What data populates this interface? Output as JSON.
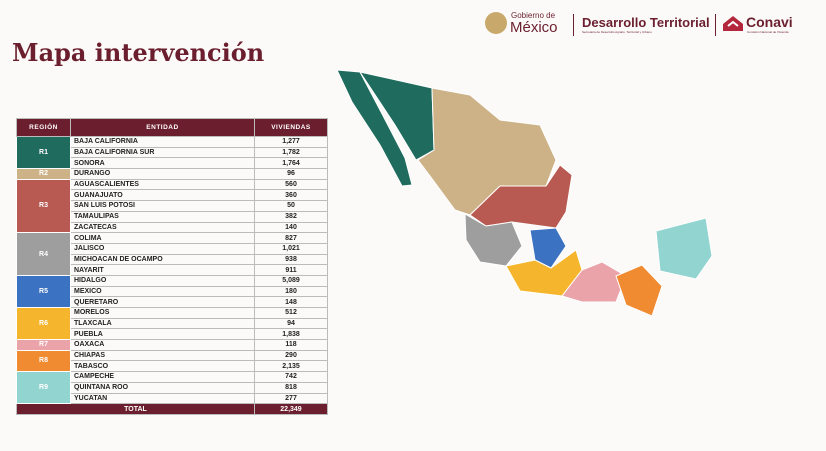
{
  "header": {
    "gov_small": "Gobierno de",
    "gov_big": "México",
    "agency": "Desarrollo Territorial",
    "agency_small": "Secretaría de Desarrollo Agrario, Territorial y Urbano",
    "conavi": "Conavi",
    "conavi_small": "Comisión Nacional de Vivienda"
  },
  "title": "Mapa intervención",
  "table": {
    "columns": [
      "REGIÓN",
      "ENTIDAD",
      "VIVIENDAS"
    ],
    "regions": [
      {
        "region": "R1",
        "color": "#1f6b5e",
        "rows": [
          {
            "entity": "BAJA CALIFORNIA",
            "viviendas": "1,277"
          },
          {
            "entity": "BAJA CALIFORNIA SUR",
            "viviendas": "1,782"
          },
          {
            "entity": "SONORA",
            "viviendas": "1,764"
          }
        ]
      },
      {
        "region": "R2",
        "color": "#cdb287",
        "rows": [
          {
            "entity": "DURANGO",
            "viviendas": "96"
          }
        ]
      },
      {
        "region": "R3",
        "color": "#b85a52",
        "rows": [
          {
            "entity": "AGUASCALIENTES",
            "viviendas": "560"
          },
          {
            "entity": "GUANAJUATO",
            "viviendas": "360"
          },
          {
            "entity": "SAN LUIS POTOSI",
            "viviendas": "50"
          },
          {
            "entity": "TAMAULIPAS",
            "viviendas": "382"
          },
          {
            "entity": "ZACATECAS",
            "viviendas": "140"
          }
        ]
      },
      {
        "region": "R4",
        "color": "#9e9e9e",
        "rows": [
          {
            "entity": "COLIMA",
            "viviendas": "827"
          },
          {
            "entity": "JALISCO",
            "viviendas": "1,021"
          },
          {
            "entity": "MICHOACAN DE OCAMPO",
            "viviendas": "938"
          },
          {
            "entity": "NAYARIT",
            "viviendas": "911"
          }
        ]
      },
      {
        "region": "R5",
        "color": "#3b72c2",
        "rows": [
          {
            "entity": "HIDALGO",
            "viviendas": "5,089"
          },
          {
            "entity": "MEXICO",
            "viviendas": "180"
          },
          {
            "entity": "QUERETARO",
            "viviendas": "148"
          }
        ]
      },
      {
        "region": "R6",
        "color": "#f5b62e",
        "rows": [
          {
            "entity": "MORELOS",
            "viviendas": "512"
          },
          {
            "entity": "TLAXCALA",
            "viviendas": "94"
          },
          {
            "entity": "PUEBLA",
            "viviendas": "1,838"
          }
        ]
      },
      {
        "region": "R7",
        "color": "#eaa3a9",
        "rows": [
          {
            "entity": "OAXACA",
            "viviendas": "118"
          }
        ]
      },
      {
        "region": "R8",
        "color": "#f08b32",
        "rows": [
          {
            "entity": "CHIAPAS",
            "viviendas": "290"
          },
          {
            "entity": "TABASCO",
            "viviendas": "2,135"
          }
        ]
      },
      {
        "region": "R9",
        "color": "#92d4d0",
        "rows": [
          {
            "entity": "CAMPECHE",
            "viviendas": "742"
          },
          {
            "entity": "QUINTANA ROO",
            "viviendas": "818"
          },
          {
            "entity": "YUCATAN",
            "viviendas": "277"
          }
        ]
      }
    ],
    "total": {
      "label": "TOTAL",
      "value": "22,349"
    }
  }
}
